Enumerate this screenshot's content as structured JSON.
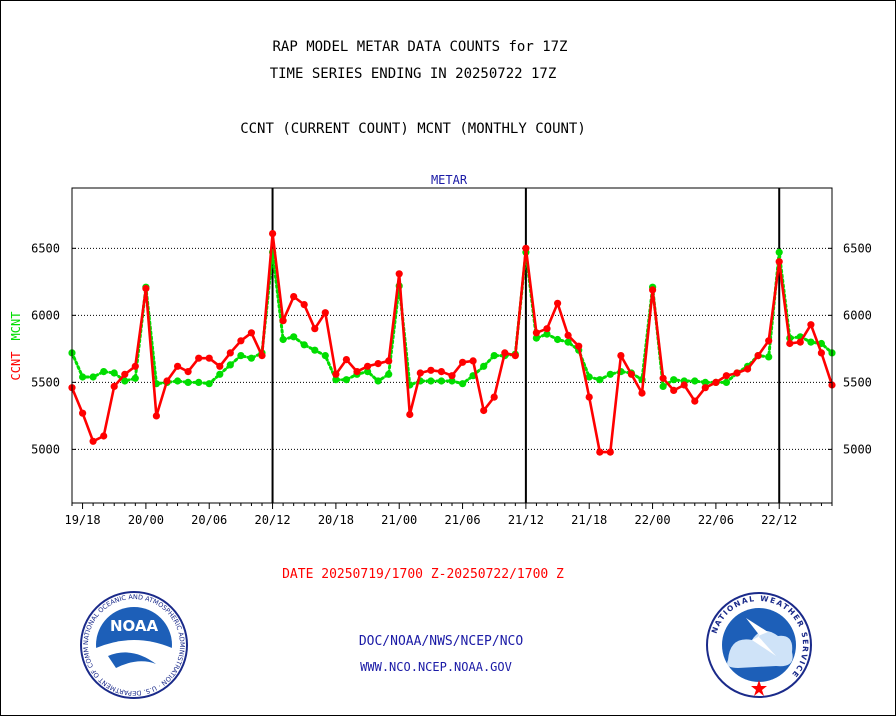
{
  "header": {
    "title_line1": "RAP MODEL METAR DATA COUNTS for 17Z",
    "title_line2": "TIME SERIES ENDING IN 20250722 17Z",
    "subtitle": "CCNT (CURRENT COUNT) MCNT (MONTHLY COUNT)"
  },
  "footer": {
    "date_range": "DATE 20250719/1700 Z-20250722/1700 Z",
    "org_line": "DOC/NOAA/NWS/NCEP/NCO",
    "url_line": "WWW.NCO.NCEP.NOAA.GOV",
    "noaa_logo_text": "NOAA",
    "noaa_ring_text": "NATIONAL OCEANIC AND ATMOSPHERIC ADMINISTRATION · U.S. DEPARTMENT OF COMMERCE",
    "nws_ring_text": "NATIONAL WEATHER SERVICE"
  },
  "colors": {
    "ccnt": "#ff0000",
    "mcnt": "#00dd00",
    "text_blue": "#1a1aa6",
    "text_red": "#ff0000",
    "axis": "#000000"
  },
  "chart_data": {
    "type": "line",
    "title": "METAR",
    "ylabel_ccnt": "CCNT",
    "ylabel_mcnt": "MCNT",
    "ylim": [
      4600,
      6950
    ],
    "yticks": [
      5000,
      5500,
      6000,
      6500
    ],
    "ytick_labels": [
      "5000",
      "5500",
      "6000",
      "6500"
    ],
    "x_start_hour": -7,
    "x_end_hour": 65,
    "xticks_hours": [
      -6,
      0,
      6,
      12,
      18,
      24,
      30,
      36,
      42,
      48,
      54,
      60
    ],
    "xtick_labels": [
      "19/18",
      "20/00",
      "20/06",
      "20/12",
      "20/18",
      "21/00",
      "21/06",
      "21/12",
      "21/18",
      "22/00",
      "22/06",
      "22/12"
    ],
    "vertical_lines_hours": [
      12,
      36,
      60
    ],
    "grid": "horizontal-dotted",
    "series": [
      {
        "name": "CCNT",
        "x_hours": [
          -7,
          -6,
          -5,
          -4,
          -3,
          -2,
          -1,
          0,
          1,
          2,
          3,
          4,
          5,
          6,
          7,
          8,
          9,
          10,
          11,
          12,
          13,
          14,
          15,
          16,
          17,
          18,
          19,
          20,
          21,
          22,
          23,
          24,
          25,
          26,
          27,
          28,
          29,
          30,
          31,
          32,
          33,
          34,
          35,
          36,
          37,
          38,
          39,
          40,
          41,
          42,
          43,
          44,
          45,
          46,
          47,
          48,
          49,
          50,
          51,
          52,
          53,
          54,
          55,
          56,
          57,
          58,
          59,
          60,
          61,
          62,
          63,
          64,
          65
        ],
        "values": [
          5460,
          5270,
          5060,
          5100,
          5470,
          5560,
          5620,
          6200,
          5250,
          5510,
          5620,
          5580,
          5680,
          5680,
          5620,
          5720,
          5810,
          5870,
          5700,
          6610,
          5960,
          6140,
          6080,
          5900,
          6020,
          5560,
          5670,
          5580,
          5620,
          5640,
          5660,
          6310,
          5260,
          5570,
          5590,
          5580,
          5550,
          5650,
          5660,
          5290,
          5390,
          5720,
          5700,
          6500,
          5870,
          5900,
          6090,
          5850,
          5770,
          5390,
          4980,
          4980,
          5700,
          5560,
          5420,
          6190,
          5530,
          5440,
          5480,
          5360,
          5460,
          5500,
          5550,
          5570,
          5600,
          5700,
          5810,
          6400,
          5790,
          5800,
          5930,
          5720,
          5480
        ]
      },
      {
        "name": "MCNT",
        "x_hours": [
          -7,
          -6,
          -5,
          -4,
          -3,
          -2,
          -1,
          0,
          1,
          2,
          3,
          4,
          5,
          6,
          7,
          8,
          9,
          10,
          11,
          12,
          13,
          14,
          15,
          16,
          17,
          18,
          19,
          20,
          21,
          22,
          23,
          24,
          25,
          26,
          27,
          28,
          29,
          30,
          31,
          32,
          33,
          34,
          35,
          36,
          37,
          38,
          39,
          40,
          41,
          42,
          43,
          44,
          45,
          46,
          47,
          48,
          49,
          50,
          51,
          52,
          53,
          54,
          55,
          56,
          57,
          58,
          59,
          60,
          61,
          62,
          63,
          64,
          65
        ],
        "values": [
          5720,
          5540,
          5540,
          5580,
          5570,
          5510,
          5530,
          6210,
          5490,
          5500,
          5510,
          5500,
          5500,
          5490,
          5560,
          5630,
          5700,
          5680,
          5720,
          6470,
          5820,
          5840,
          5780,
          5740,
          5700,
          5520,
          5520,
          5560,
          5580,
          5510,
          5560,
          6220,
          5480,
          5510,
          5510,
          5510,
          5510,
          5490,
          5550,
          5620,
          5700,
          5700,
          5710,
          6470,
          5830,
          5860,
          5820,
          5800,
          5740,
          5540,
          5520,
          5560,
          5580,
          5570,
          5520,
          6210,
          5470,
          5520,
          5510,
          5510,
          5500,
          5500,
          5500,
          5570,
          5620,
          5700,
          5690,
          6470,
          5830,
          5840,
          5800,
          5790,
          5720
        ]
      }
    ]
  }
}
